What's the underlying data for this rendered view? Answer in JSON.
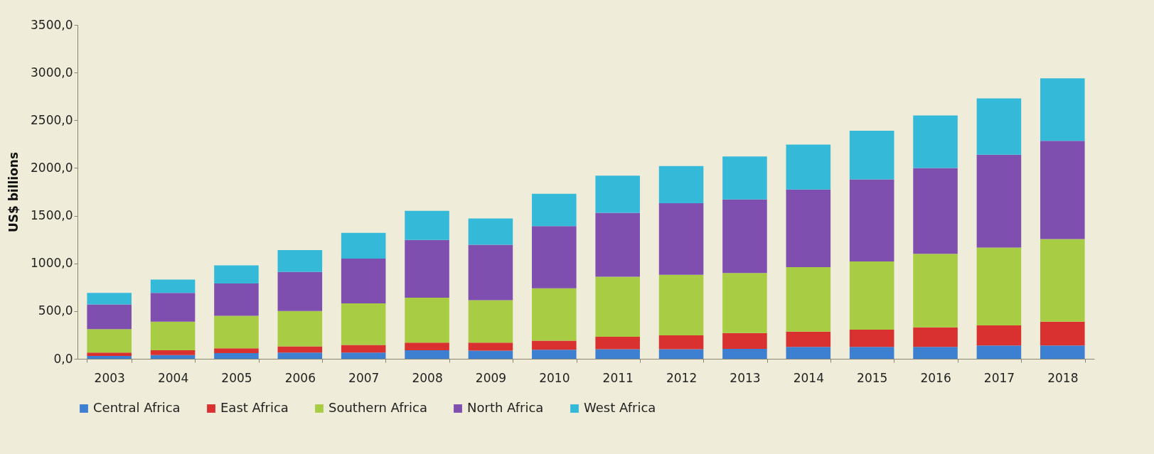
{
  "chart_data": {
    "type": "bar",
    "stacked": true,
    "ylabel": "US$ billions",
    "legend": "bottom",
    "grid": false,
    "categories": [
      "2003",
      "2004",
      "2005",
      "2006",
      "2007",
      "2008",
      "2009",
      "2010",
      "2011",
      "2012",
      "2013",
      "2014",
      "2015",
      "2016",
      "2017",
      "2018"
    ],
    "ylim": [
      0,
      3500
    ],
    "yticks": [
      {
        "value": 0,
        "label": "0,0"
      },
      {
        "value": 500,
        "label": "500,0"
      },
      {
        "value": 1000,
        "label": "1000,0"
      },
      {
        "value": 1500,
        "label": "1500,0"
      },
      {
        "value": 2000,
        "label": "2000,0"
      },
      {
        "value": 2500,
        "label": "2500,0"
      },
      {
        "value": 3000,
        "label": "3000,0"
      },
      {
        "value": 3500,
        "label": "3500,0"
      }
    ],
    "series": [
      {
        "name": "Central Africa",
        "color": "#3d7fd1",
        "values": [
          30,
          40,
          60,
          65,
          65,
          90,
          85,
          95,
          100,
          100,
          105,
          125,
          125,
          125,
          140,
          140
        ]
      },
      {
        "name": "East Africa",
        "color": "#d93030",
        "values": [
          35,
          50,
          50,
          65,
          80,
          80,
          85,
          95,
          130,
          145,
          165,
          160,
          180,
          205,
          210,
          250
        ]
      },
      {
        "name": "Southern Africa",
        "color": "#a8cc44",
        "values": [
          245,
          300,
          340,
          370,
          435,
          470,
          445,
          550,
          630,
          635,
          630,
          675,
          715,
          770,
          815,
          865
        ]
      },
      {
        "name": "North Africa",
        "color": "#7f4fb0",
        "values": [
          260,
          300,
          340,
          410,
          470,
          605,
          580,
          650,
          670,
          750,
          770,
          815,
          860,
          900,
          975,
          1030
        ]
      },
      {
        "name": "West Africa",
        "color": "#35b9d9",
        "values": [
          120,
          140,
          190,
          230,
          270,
          305,
          275,
          340,
          390,
          390,
          450,
          470,
          510,
          550,
          590,
          655
        ]
      }
    ]
  }
}
